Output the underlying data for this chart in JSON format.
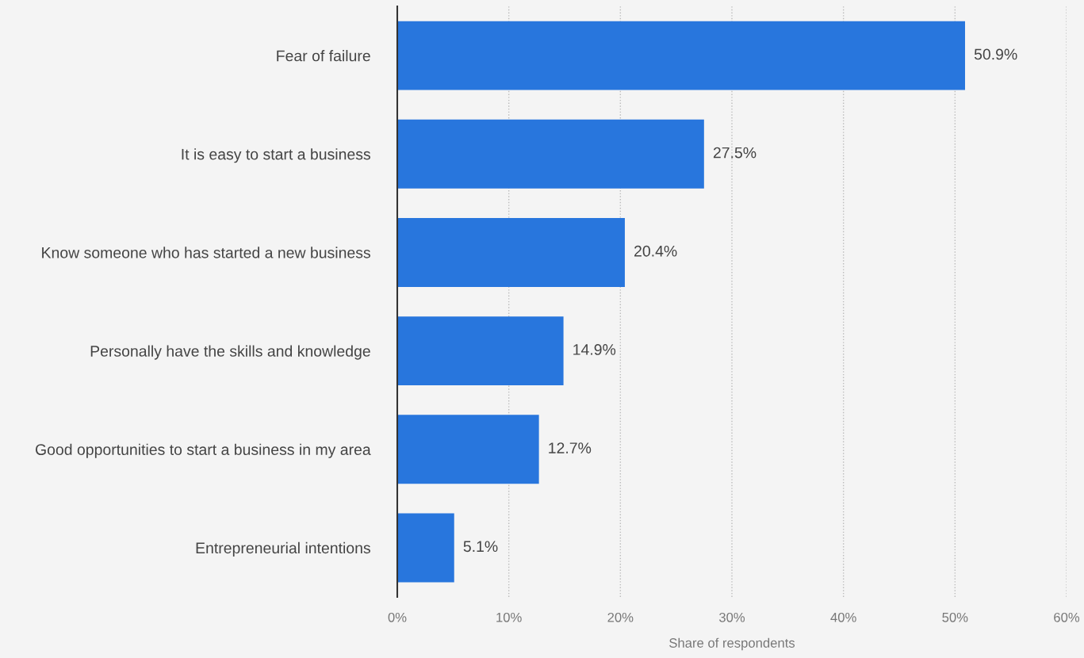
{
  "chart_data": {
    "type": "bar",
    "orientation": "horizontal",
    "xlabel": "Share of respondents",
    "categories": [
      "Fear of failure",
      "It is easy to start a business",
      "Know someone who has started a new business",
      "Personally have the skills and knowledge",
      "Good opportunities to start a business in my area",
      "Entrepreneurial intentions"
    ],
    "values": [
      50.9,
      27.5,
      20.4,
      14.9,
      12.7,
      5.1
    ],
    "value_labels": [
      "50.9%",
      "27.5%",
      "20.4%",
      "14.9%",
      "12.7%",
      "5.1%"
    ],
    "color": "#2876dd",
    "xlim": [
      0,
      60
    ],
    "xticks": [
      {
        "value": 0,
        "label": "0%"
      },
      {
        "value": 10,
        "label": "10%"
      },
      {
        "value": 20,
        "label": "20%"
      },
      {
        "value": 30,
        "label": "30%"
      },
      {
        "value": 40,
        "label": "40%"
      },
      {
        "value": 50,
        "label": "50%"
      },
      {
        "value": 60,
        "label": "60%"
      }
    ],
    "grid": "x",
    "legend": false
  }
}
